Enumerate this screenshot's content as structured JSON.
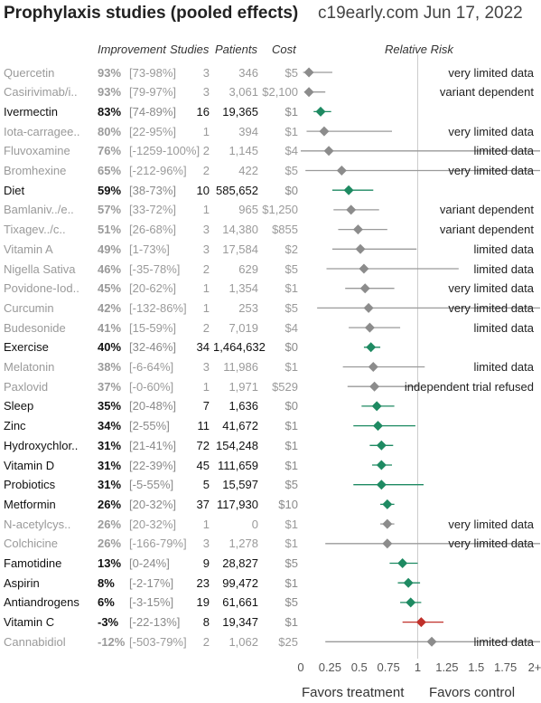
{
  "title": "Prophylaxis studies (pooled effects)",
  "source": "c19early.com Jun 17, 2022",
  "headers": {
    "improvement": "Improvement",
    "studies": "Studies",
    "patients": "Patients",
    "cost": "Cost",
    "relative_risk": "Relative Risk"
  },
  "x_labels": {
    "treatment": "Favors treatment",
    "control": "Favors control"
  },
  "colors": {
    "gray_marker": "#8c8c8c",
    "green_marker": "#1e8a62",
    "red_marker": "#c0302a",
    "gray_line": "#9a9a9a"
  },
  "chart_data": {
    "type": "scatter",
    "xlim": [
      0,
      2
    ],
    "ticks": [
      "0",
      "0.25",
      "0.5",
      "0.75",
      "1",
      "1.25",
      "1.5",
      "1.75",
      "2+"
    ],
    "reference_line": 1,
    "rows": [
      {
        "name": "Quercetin",
        "improvement": "93%",
        "ci": "[73-98%]",
        "studies": "3",
        "patients": "346",
        "cost": "$5",
        "note": "very limited data",
        "rr": 0.07,
        "lo": 0.02,
        "hi": 0.27,
        "style": "gray",
        "arrow": false
      },
      {
        "name": "Casirivimab/i..",
        "improvement": "93%",
        "ci": "[79-97%]",
        "studies": "3",
        "patients": "3,061",
        "cost": "$2,100",
        "note": "variant dependent",
        "rr": 0.07,
        "lo": 0.03,
        "hi": 0.21,
        "style": "gray",
        "arrow": false
      },
      {
        "name": "Ivermectin",
        "improvement": "83%",
        "ci": "[74-89%]",
        "studies": "16",
        "patients": "19,365",
        "cost": "$1",
        "note": "",
        "rr": 0.17,
        "lo": 0.11,
        "hi": 0.26,
        "style": "green",
        "arrow": false
      },
      {
        "name": "Iota-carragee..",
        "improvement": "80%",
        "ci": "[22-95%]",
        "studies": "1",
        "patients": "394",
        "cost": "$1",
        "note": "very limited data",
        "rr": 0.2,
        "lo": 0.05,
        "hi": 0.78,
        "style": "gray",
        "arrow": false
      },
      {
        "name": "Fluvoxamine",
        "improvement": "76%",
        "ci": "[-1259-100%]",
        "studies": "2",
        "patients": "1,145",
        "cost": "$4",
        "note": "limited data",
        "rr": 0.24,
        "lo": 0.0,
        "hi": 2.0,
        "style": "gray",
        "arrow": true
      },
      {
        "name": "Bromhexine",
        "improvement": "65%",
        "ci": "[-212-96%]",
        "studies": "2",
        "patients": "422",
        "cost": "$5",
        "note": "very limited data",
        "rr": 0.35,
        "lo": 0.04,
        "hi": 2.0,
        "style": "gray",
        "arrow": true
      },
      {
        "name": "Diet",
        "improvement": "59%",
        "ci": "[38-73%]",
        "studies": "10",
        "patients": "585,652",
        "cost": "$0",
        "note": "",
        "rr": 0.41,
        "lo": 0.27,
        "hi": 0.62,
        "style": "green",
        "arrow": false
      },
      {
        "name": "Bamlaniv../e..",
        "improvement": "57%",
        "ci": "[33-72%]",
        "studies": "1",
        "patients": "965",
        "cost": "$1,250",
        "note": "variant dependent",
        "rr": 0.43,
        "lo": 0.28,
        "hi": 0.67,
        "style": "gray",
        "arrow": false
      },
      {
        "name": "Tixagev../c..",
        "improvement": "51%",
        "ci": "[26-68%]",
        "studies": "3",
        "patients": "14,380",
        "cost": "$855",
        "note": "variant dependent",
        "rr": 0.49,
        "lo": 0.32,
        "hi": 0.74,
        "style": "gray",
        "arrow": false
      },
      {
        "name": "Vitamin A",
        "improvement": "49%",
        "ci": "[1-73%]",
        "studies": "3",
        "patients": "17,584",
        "cost": "$2",
        "note": "limited data",
        "rr": 0.51,
        "lo": 0.27,
        "hi": 0.99,
        "style": "gray",
        "arrow": false
      },
      {
        "name": "Nigella Sativa",
        "improvement": "46%",
        "ci": "[-35-78%]",
        "studies": "2",
        "patients": "629",
        "cost": "$5",
        "note": "limited data",
        "rr": 0.54,
        "lo": 0.22,
        "hi": 1.35,
        "style": "gray",
        "arrow": false
      },
      {
        "name": "Povidone-Iod..",
        "improvement": "45%",
        "ci": "[20-62%]",
        "studies": "1",
        "patients": "1,354",
        "cost": "$1",
        "note": "very limited data",
        "rr": 0.55,
        "lo": 0.38,
        "hi": 0.8,
        "style": "gray",
        "arrow": false
      },
      {
        "name": "Curcumin",
        "improvement": "42%",
        "ci": "[-132-86%]",
        "studies": "1",
        "patients": "253",
        "cost": "$5",
        "note": "very limited data",
        "rr": 0.58,
        "lo": 0.14,
        "hi": 2.0,
        "style": "gray",
        "arrow": true
      },
      {
        "name": "Budesonide",
        "improvement": "41%",
        "ci": "[15-59%]",
        "studies": "2",
        "patients": "7,019",
        "cost": "$4",
        "note": "limited data",
        "rr": 0.59,
        "lo": 0.41,
        "hi": 0.85,
        "style": "gray",
        "arrow": false
      },
      {
        "name": "Exercise",
        "improvement": "40%",
        "ci": "[32-46%]",
        "studies": "34",
        "patients": "1,464,632",
        "cost": "$0",
        "note": "",
        "rr": 0.6,
        "lo": 0.54,
        "hi": 0.68,
        "style": "green",
        "arrow": false
      },
      {
        "name": "Melatonin",
        "improvement": "38%",
        "ci": "[-6-64%]",
        "studies": "3",
        "patients": "11,986",
        "cost": "$1",
        "note": "limited data",
        "rr": 0.62,
        "lo": 0.36,
        "hi": 1.06,
        "style": "gray",
        "arrow": false
      },
      {
        "name": "Paxlovid",
        "improvement": "37%",
        "ci": "[-0-60%]",
        "studies": "1",
        "patients": "1,971",
        "cost": "$529",
        "note": "independent trial refused",
        "rr": 0.63,
        "lo": 0.4,
        "hi": 1.0,
        "style": "gray",
        "arrow": false
      },
      {
        "name": "Sleep",
        "improvement": "35%",
        "ci": "[20-48%]",
        "studies": "7",
        "patients": "1,636",
        "cost": "$0",
        "note": "",
        "rr": 0.65,
        "lo": 0.52,
        "hi": 0.8,
        "style": "green",
        "arrow": false
      },
      {
        "name": "Zinc",
        "improvement": "34%",
        "ci": "[2-55%]",
        "studies": "11",
        "patients": "41,672",
        "cost": "$1",
        "note": "",
        "rr": 0.66,
        "lo": 0.45,
        "hi": 0.98,
        "style": "green",
        "arrow": false
      },
      {
        "name": "Hydroxychlor..",
        "improvement": "31%",
        "ci": "[21-41%]",
        "studies": "72",
        "patients": "154,248",
        "cost": "$1",
        "note": "",
        "rr": 0.69,
        "lo": 0.59,
        "hi": 0.79,
        "style": "green",
        "arrow": false
      },
      {
        "name": "Vitamin D",
        "improvement": "31%",
        "ci": "[22-39%]",
        "studies": "45",
        "patients": "111,659",
        "cost": "$1",
        "note": "",
        "rr": 0.69,
        "lo": 0.61,
        "hi": 0.78,
        "style": "green",
        "arrow": false
      },
      {
        "name": "Probiotics",
        "improvement": "31%",
        "ci": "[-5-55%]",
        "studies": "5",
        "patients": "15,597",
        "cost": "$5",
        "note": "",
        "rr": 0.69,
        "lo": 0.45,
        "hi": 1.05,
        "style": "green",
        "arrow": false
      },
      {
        "name": "Metformin",
        "improvement": "26%",
        "ci": "[20-32%]",
        "studies": "37",
        "patients": "117,930",
        "cost": "$10",
        "note": "",
        "rr": 0.74,
        "lo": 0.68,
        "hi": 0.8,
        "style": "green",
        "arrow": false
      },
      {
        "name": "N-acetylcys..",
        "improvement": "26%",
        "ci": "[20-32%]",
        "studies": "1",
        "patients": "0",
        "cost": "$1",
        "note": "very limited data",
        "rr": 0.74,
        "lo": 0.68,
        "hi": 0.8,
        "style": "gray",
        "arrow": false
      },
      {
        "name": "Colchicine",
        "improvement": "26%",
        "ci": "[-166-79%]",
        "studies": "3",
        "patients": "1,278",
        "cost": "$1",
        "note": "very limited data",
        "rr": 0.74,
        "lo": 0.21,
        "hi": 2.0,
        "style": "gray",
        "arrow": true
      },
      {
        "name": "Famotidine",
        "improvement": "13%",
        "ci": "[0-24%]",
        "studies": "9",
        "patients": "28,827",
        "cost": "$5",
        "note": "",
        "rr": 0.87,
        "lo": 0.76,
        "hi": 1.0,
        "style": "green",
        "arrow": false
      },
      {
        "name": "Aspirin",
        "improvement": "8%",
        "ci": "[-2-17%]",
        "studies": "23",
        "patients": "99,472",
        "cost": "$1",
        "note": "",
        "rr": 0.92,
        "lo": 0.83,
        "hi": 1.02,
        "style": "green",
        "arrow": false
      },
      {
        "name": "Antiandrogens",
        "improvement": "6%",
        "ci": "[-3-15%]",
        "studies": "19",
        "patients": "61,661",
        "cost": "$5",
        "note": "",
        "rr": 0.94,
        "lo": 0.85,
        "hi": 1.03,
        "style": "green",
        "arrow": false
      },
      {
        "name": "Vitamin C",
        "improvement": "-3%",
        "ci": "[-22-13%]",
        "studies": "8",
        "patients": "19,347",
        "cost": "$1",
        "note": "",
        "rr": 1.03,
        "lo": 0.87,
        "hi": 1.22,
        "style": "red",
        "arrow": false
      },
      {
        "name": "Cannabidiol",
        "improvement": "-12%",
        "ci": "[-503-79%]",
        "studies": "2",
        "patients": "1,062",
        "cost": "$25",
        "note": "limited data",
        "rr": 1.12,
        "lo": 0.21,
        "hi": 2.0,
        "style": "gray",
        "arrow": true
      }
    ]
  }
}
